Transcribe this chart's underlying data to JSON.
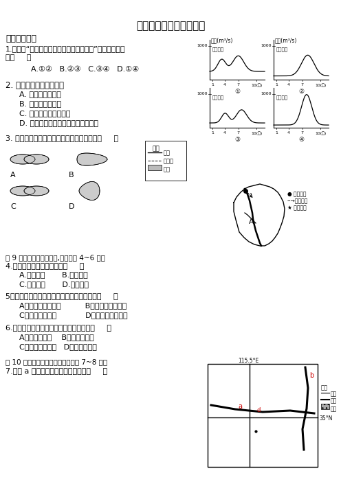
{
  "title": "中国的河流和湖泊测试题",
  "section1": "一、单项选择",
  "q1_line1": "1.右图是“我国四个地区河流流量过程线图”，其中正确的",
  "q1_line2": "是（     ）",
  "q1_opts": "A.①②   B.②③   C.③④   D.①④",
  "q2_text": "2. 塔里木河进入丰水期时",
  "q2_opts": [
    "A. 地中海沿岸多雨",
    "B. 新西兰正値夏季",
    "C. 印度半岛盛行西南风",
    "D. 印度洋北部洋流呼逆时针方向流动"
  ],
  "q3_text": "3. 下列图示的湖泊（或湖群）为和水湖的是（     ）",
  "q4_caption": "图 9 是某引水工程示意图,据图回答 4~6 题。",
  "q4_text": "4.图示区域中的引水工程是（     ）",
  "q4_opts": [
    "A.引黄济青       B.引黄入晋",
    "C.引滦入津       D.引滦入唐"
  ],
  "q5_text": "5．图中河流支流沿岸谷地的主要形成原因是（     ）",
  "q5_opts": [
    "A、河流的没积作用          B、河流的侵蚀作用",
    "C、断裂下沉作用            D、风力的侵蚀作用"
  ],
  "q6_text": "6.我国水量最大、汛期最长的河流分别是（     ）",
  "q6_opts": [
    "A、长江、长江    B、长江、珠江",
    "C、雅龙江、长江   D、长江、淮河"
  ],
  "q7_caption": "图 10 为我国某区域地图，请回答第 7~8 题。",
  "q7_text": "7.图中 a 河流以南区域的地势主要为（     ）",
  "legend_river": "河流",
  "legend_contour": "等高线",
  "legend_lake": "湖泊",
  "legend_title": "图例",
  "map_legend1": "水利枢纽",
  "map_legend2": "引水路线",
  "map_legend3": "受水城市",
  "chart_regions": [
    "江南地区",
    "华北地区",
    "东北地区",
    "西北地区"
  ],
  "chart_labels": [
    "①",
    "②",
    "③",
    "④"
  ],
  "flow_ylabel": "流量(m³/s)",
  "flow_xlabel": "10(月)",
  "bg_color": "#ffffff"
}
